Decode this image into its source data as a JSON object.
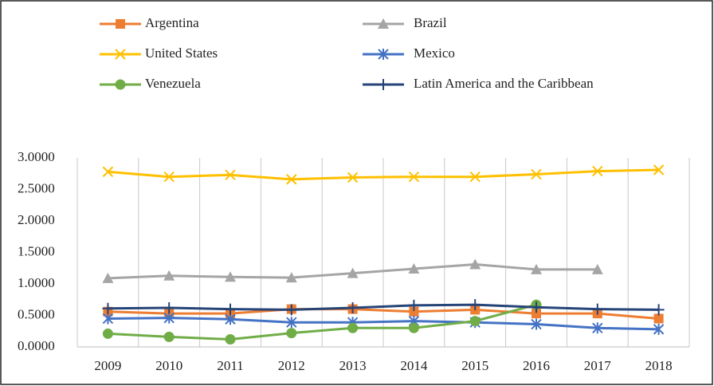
{
  "chart_data": {
    "type": "line",
    "categories": [
      "2009",
      "2010",
      "2011",
      "2012",
      "2013",
      "2014",
      "2015",
      "2016",
      "2017",
      "2018"
    ],
    "series": [
      {
        "name": "Argentina",
        "color": "#ed7d31",
        "marker": "square",
        "values": [
          0.56,
          0.53,
          0.53,
          0.6,
          0.6,
          0.56,
          0.59,
          0.53,
          0.53,
          0.45
        ]
      },
      {
        "name": "Brazil",
        "color": "#a5a5a5",
        "marker": "triangle",
        "values": [
          1.09,
          1.13,
          1.11,
          1.1,
          1.17,
          1.24,
          1.31,
          1.23,
          1.23,
          null
        ]
      },
      {
        "name": "United States",
        "color": "#ffc000",
        "marker": "x",
        "values": [
          2.78,
          2.7,
          2.73,
          2.66,
          2.69,
          2.7,
          2.7,
          2.74,
          2.79,
          2.81
        ]
      },
      {
        "name": "Mexico",
        "color": "#4472c4",
        "marker": "asterisk",
        "values": [
          0.45,
          0.46,
          0.44,
          0.39,
          0.39,
          0.41,
          0.39,
          0.36,
          0.3,
          0.28
        ]
      },
      {
        "name": "Venezuela",
        "color": "#70ad47",
        "marker": "circle",
        "values": [
          0.21,
          0.16,
          0.12,
          0.22,
          0.3,
          0.3,
          0.41,
          0.67,
          null,
          null
        ]
      },
      {
        "name": "Latin America and the Caribbean",
        "color": "#264478",
        "marker": "plus",
        "values": [
          0.61,
          0.62,
          0.6,
          0.59,
          0.62,
          0.66,
          0.67,
          0.63,
          0.6,
          0.59
        ]
      }
    ],
    "ylim": [
      0,
      3
    ],
    "yticks": [
      {
        "value": 0,
        "label": "0.0000"
      },
      {
        "value": 0.5,
        "label": "0.5000"
      },
      {
        "value": 1,
        "label": "1.0000"
      },
      {
        "value": 1.5,
        "label": "1.5000"
      },
      {
        "value": 2,
        "label": "2.0000"
      },
      {
        "value": 2.5,
        "label": "2.5000"
      },
      {
        "value": 3,
        "label": "3.0000"
      }
    ],
    "legend": "top"
  }
}
